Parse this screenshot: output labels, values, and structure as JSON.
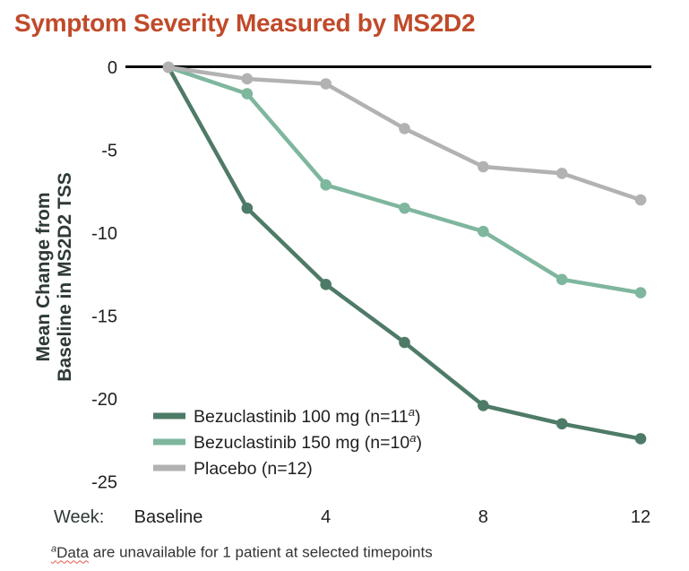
{
  "colors": {
    "title": "#c04a2a",
    "axis_label": "#2e3a34",
    "tick": "#1f1f1f",
    "axis_line": "#000000",
    "footnote": "#333333",
    "squiggle": "#e4584f"
  },
  "chart_data": {
    "type": "line",
    "title": "Symptom Severity Measured by MS2D2",
    "xlabel": "Week:",
    "ylabel_lines": [
      "Mean Change from",
      "Baseline in MS2D2 TSS"
    ],
    "x_weeks": [
      0,
      2,
      4,
      6,
      8,
      10,
      12
    ],
    "x_ticks": [
      {
        "week": 0,
        "label": "Baseline"
      },
      {
        "week": 4,
        "label": "4"
      },
      {
        "week": 8,
        "label": "8"
      },
      {
        "week": 12,
        "label": "12"
      }
    ],
    "yticks": [
      0,
      -5,
      -10,
      -15,
      -20,
      -25
    ],
    "ylim": [
      -25,
      0
    ],
    "grid": false,
    "legend_position": "inside bottom-left",
    "series": [
      {
        "id": "bezuclastinib-100mg",
        "label_pre": "Bezuclastinib 100 mg (n=11",
        "label_sup": "a",
        "label_post": ")",
        "color": "#4e7b67",
        "values": [
          0,
          -8.5,
          -13.1,
          -16.6,
          -20.4,
          -21.5,
          -22.4
        ]
      },
      {
        "id": "bezuclastinib-150mg",
        "label_pre": "Bezuclastinib 150 mg (n=10",
        "label_sup": "a",
        "label_post": ")",
        "color": "#7fb69e",
        "values": [
          0,
          -1.6,
          -7.1,
          -8.5,
          -9.9,
          -12.8,
          -13.6
        ]
      },
      {
        "id": "placebo",
        "label_pre": "Placebo (n=12)",
        "label_sup": "",
        "label_post": "",
        "color": "#b2b2b2",
        "values": [
          0,
          -0.7,
          -1.0,
          -3.7,
          -6.0,
          -6.4,
          -8.0
        ]
      }
    ]
  },
  "footnote": {
    "sup": "a",
    "underlined_word": "Data",
    "rest": " are unavailable for 1 patient at selected timepoints"
  }
}
